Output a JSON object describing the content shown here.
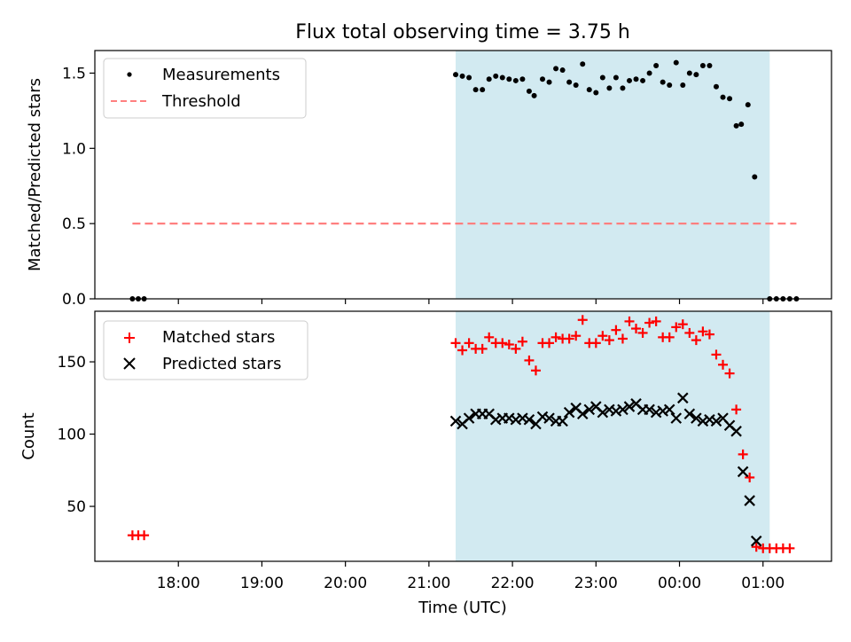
{
  "chart_data": {
    "title": "Flux total observing time = 3.75 h",
    "xlabel": "Time (UTC)",
    "x_ticks": [
      "18:00",
      "19:00",
      "20:00",
      "21:00",
      "22:00",
      "23:00",
      "00:00",
      "01:00"
    ],
    "highlight": {
      "start": 21.32,
      "end": 25.08,
      "color": "#add8e6"
    },
    "panels": [
      {
        "type": "scatter",
        "ylabel": "Matched/Predicted stars",
        "ylim": [
          0,
          1.65
        ],
        "y_ticks": [
          "0.0",
          "0.5",
          "1.0",
          "1.5"
        ],
        "y_tick_values": [
          0,
          0.5,
          1.0,
          1.5
        ],
        "legend": "top-left",
        "series": [
          {
            "name": "Measurements",
            "marker": "dot",
            "color": "#000000",
            "points": [
              [
                17.45,
                0
              ],
              [
                17.52,
                0
              ],
              [
                17.59,
                0
              ],
              [
                21.32,
                1.49
              ],
              [
                21.4,
                1.48
              ],
              [
                21.48,
                1.47
              ],
              [
                21.56,
                1.39
              ],
              [
                21.64,
                1.39
              ],
              [
                21.72,
                1.46
              ],
              [
                21.8,
                1.48
              ],
              [
                21.88,
                1.47
              ],
              [
                21.96,
                1.46
              ],
              [
                22.04,
                1.45
              ],
              [
                22.12,
                1.46
              ],
              [
                22.2,
                1.38
              ],
              [
                22.26,
                1.35
              ],
              [
                22.36,
                1.46
              ],
              [
                22.44,
                1.44
              ],
              [
                22.52,
                1.53
              ],
              [
                22.6,
                1.52
              ],
              [
                22.68,
                1.44
              ],
              [
                22.76,
                1.42
              ],
              [
                22.84,
                1.56
              ],
              [
                22.92,
                1.39
              ],
              [
                23.0,
                1.37
              ],
              [
                23.08,
                1.47
              ],
              [
                23.16,
                1.4
              ],
              [
                23.24,
                1.47
              ],
              [
                23.32,
                1.4
              ],
              [
                23.4,
                1.45
              ],
              [
                23.48,
                1.46
              ],
              [
                23.56,
                1.45
              ],
              [
                23.64,
                1.5
              ],
              [
                23.72,
                1.55
              ],
              [
                23.8,
                1.44
              ],
              [
                23.88,
                1.42
              ],
              [
                23.96,
                1.57
              ],
              [
                24.04,
                1.42
              ],
              [
                24.12,
                1.5
              ],
              [
                24.2,
                1.49
              ],
              [
                24.28,
                1.55
              ],
              [
                24.36,
                1.55
              ],
              [
                24.44,
                1.41
              ],
              [
                24.52,
                1.34
              ],
              [
                24.6,
                1.33
              ],
              [
                24.68,
                1.15
              ],
              [
                24.74,
                1.16
              ],
              [
                24.82,
                1.29
              ],
              [
                24.9,
                0.81
              ],
              [
                25.08,
                0
              ],
              [
                25.16,
                0
              ],
              [
                25.24,
                0
              ],
              [
                25.32,
                0
              ],
              [
                25.4,
                0
              ]
            ]
          },
          {
            "name": "Threshold",
            "marker": "dashed-line",
            "color": "#ff7f7f",
            "x": [
              17.45,
              25.4
            ],
            "y": 0.5
          }
        ]
      },
      {
        "type": "scatter",
        "ylabel": "Count",
        "ylim": [
          12,
          185
        ],
        "y_ticks": [
          "50",
          "100",
          "150"
        ],
        "y_tick_values": [
          50,
          100,
          150
        ],
        "legend": "top-left",
        "series": [
          {
            "name": "Matched stars",
            "marker": "plus",
            "color": "#ff0000",
            "points": [
              [
                17.45,
                30
              ],
              [
                17.52,
                30
              ],
              [
                17.59,
                30
              ],
              [
                21.32,
                163
              ],
              [
                21.4,
                158
              ],
              [
                21.48,
                163
              ],
              [
                21.56,
                159
              ],
              [
                21.64,
                159
              ],
              [
                21.72,
                167
              ],
              [
                21.8,
                163
              ],
              [
                21.88,
                163
              ],
              [
                21.96,
                162
              ],
              [
                22.04,
                159
              ],
              [
                22.12,
                164
              ],
              [
                22.2,
                151
              ],
              [
                22.28,
                144
              ],
              [
                22.36,
                163
              ],
              [
                22.44,
                163
              ],
              [
                22.52,
                167
              ],
              [
                22.6,
                166
              ],
              [
                22.68,
                166
              ],
              [
                22.76,
                168
              ],
              [
                22.84,
                179
              ],
              [
                22.92,
                163
              ],
              [
                23.0,
                163
              ],
              [
                23.08,
                168
              ],
              [
                23.16,
                165
              ],
              [
                23.24,
                172
              ],
              [
                23.32,
                166
              ],
              [
                23.4,
                178
              ],
              [
                23.48,
                173
              ],
              [
                23.56,
                170
              ],
              [
                23.64,
                177
              ],
              [
                23.72,
                178
              ],
              [
                23.8,
                167
              ],
              [
                23.88,
                167
              ],
              [
                23.96,
                174
              ],
              [
                24.04,
                176
              ],
              [
                24.12,
                170
              ],
              [
                24.2,
                165
              ],
              [
                24.28,
                171
              ],
              [
                24.36,
                169
              ],
              [
                24.44,
                155
              ],
              [
                24.52,
                148
              ],
              [
                24.6,
                142
              ],
              [
                24.68,
                117
              ],
              [
                24.76,
                86
              ],
              [
                24.84,
                70
              ],
              [
                24.92,
                22
              ],
              [
                25.0,
                21
              ],
              [
                25.08,
                21
              ],
              [
                25.16,
                21
              ],
              [
                25.24,
                21
              ],
              [
                25.32,
                21
              ]
            ]
          },
          {
            "name": "Predicted stars",
            "marker": "cross",
            "color": "#000000",
            "points": [
              [
                21.32,
                109
              ],
              [
                21.4,
                107
              ],
              [
                21.48,
                111
              ],
              [
                21.56,
                114
              ],
              [
                21.64,
                114
              ],
              [
                21.72,
                114
              ],
              [
                21.8,
                110
              ],
              [
                21.88,
                111
              ],
              [
                21.96,
                111
              ],
              [
                22.04,
                110
              ],
              [
                22.12,
                111
              ],
              [
                22.2,
                110
              ],
              [
                22.28,
                107
              ],
              [
                22.36,
                112
              ],
              [
                22.44,
                111
              ],
              [
                22.52,
                109
              ],
              [
                22.6,
                109
              ],
              [
                22.68,
                115
              ],
              [
                22.76,
                118
              ],
              [
                22.84,
                114
              ],
              [
                22.92,
                117
              ],
              [
                23.0,
                119
              ],
              [
                23.08,
                115
              ],
              [
                23.16,
                117
              ],
              [
                23.24,
                116
              ],
              [
                23.32,
                117
              ],
              [
                23.4,
                119
              ],
              [
                23.48,
                121
              ],
              [
                23.56,
                117
              ],
              [
                23.64,
                117
              ],
              [
                23.72,
                115
              ],
              [
                23.8,
                116
              ],
              [
                23.88,
                117
              ],
              [
                23.96,
                111
              ],
              [
                24.04,
                125
              ],
              [
                24.12,
                114
              ],
              [
                24.2,
                111
              ],
              [
                24.28,
                109
              ],
              [
                24.36,
                110
              ],
              [
                24.44,
                109
              ],
              [
                24.52,
                111
              ],
              [
                24.6,
                106
              ],
              [
                24.68,
                102
              ],
              [
                24.76,
                74
              ],
              [
                24.84,
                54
              ],
              [
                24.92,
                26
              ]
            ]
          }
        ]
      }
    ]
  }
}
